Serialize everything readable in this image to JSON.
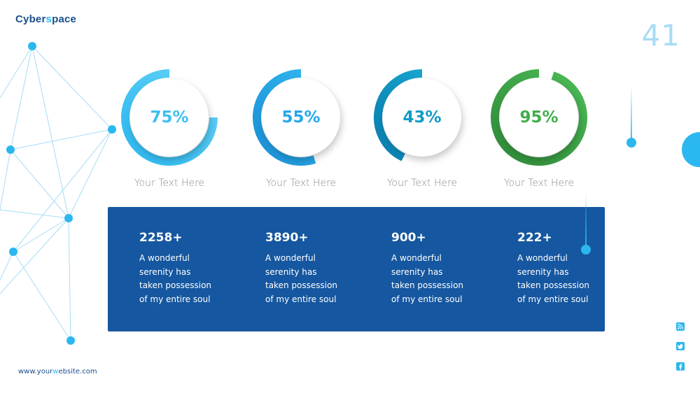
{
  "brand": {
    "logo_part1": "Cyber",
    "logo_accent": "s",
    "logo_part2": "pace"
  },
  "slide_number": "41",
  "rings": [
    {
      "value_label": "75%",
      "percent": 75,
      "caption": "Your Text Here",
      "color_start": "#2bb8f0",
      "color_end": "#67d3f7",
      "text_color": "#3fbff1"
    },
    {
      "value_label": "55%",
      "percent": 55,
      "caption": "Your Text Here",
      "color_start": "#1a8fd6",
      "color_end": "#32b8f0",
      "text_color": "#25a7ea"
    },
    {
      "value_label": "43%",
      "percent": 43,
      "caption": "Your Text Here",
      "color_start": "#0b7fae",
      "color_end": "#16a5cf",
      "text_color": "#129ac7"
    },
    {
      "value_label": "95%",
      "percent": 95,
      "caption": "Your Text Here",
      "color_start": "#2f8a39",
      "color_end": "#4cbb56",
      "text_color": "#41ae4c"
    }
  ],
  "stats": [
    {
      "value": "2258+",
      "description": "A wonderful serenity has taken possession of my entire soul"
    },
    {
      "value": "3890+",
      "description": "A wonderful serenity has taken possession of my entire soul"
    },
    {
      "value": "900+",
      "description": "A wonderful serenity has taken possession of my entire soul"
    },
    {
      "value": "222+",
      "description": "A wonderful serenity has taken possession of my entire soul"
    }
  ],
  "stats_panel_color": "#1557a0",
  "accent_color": "#2bb8f0",
  "social_icons": [
    "rss-icon",
    "twitter-icon",
    "facebook-icon"
  ],
  "website": {
    "part1": "www.your",
    "accent": "w",
    "part2": "ebsite.com"
  }
}
